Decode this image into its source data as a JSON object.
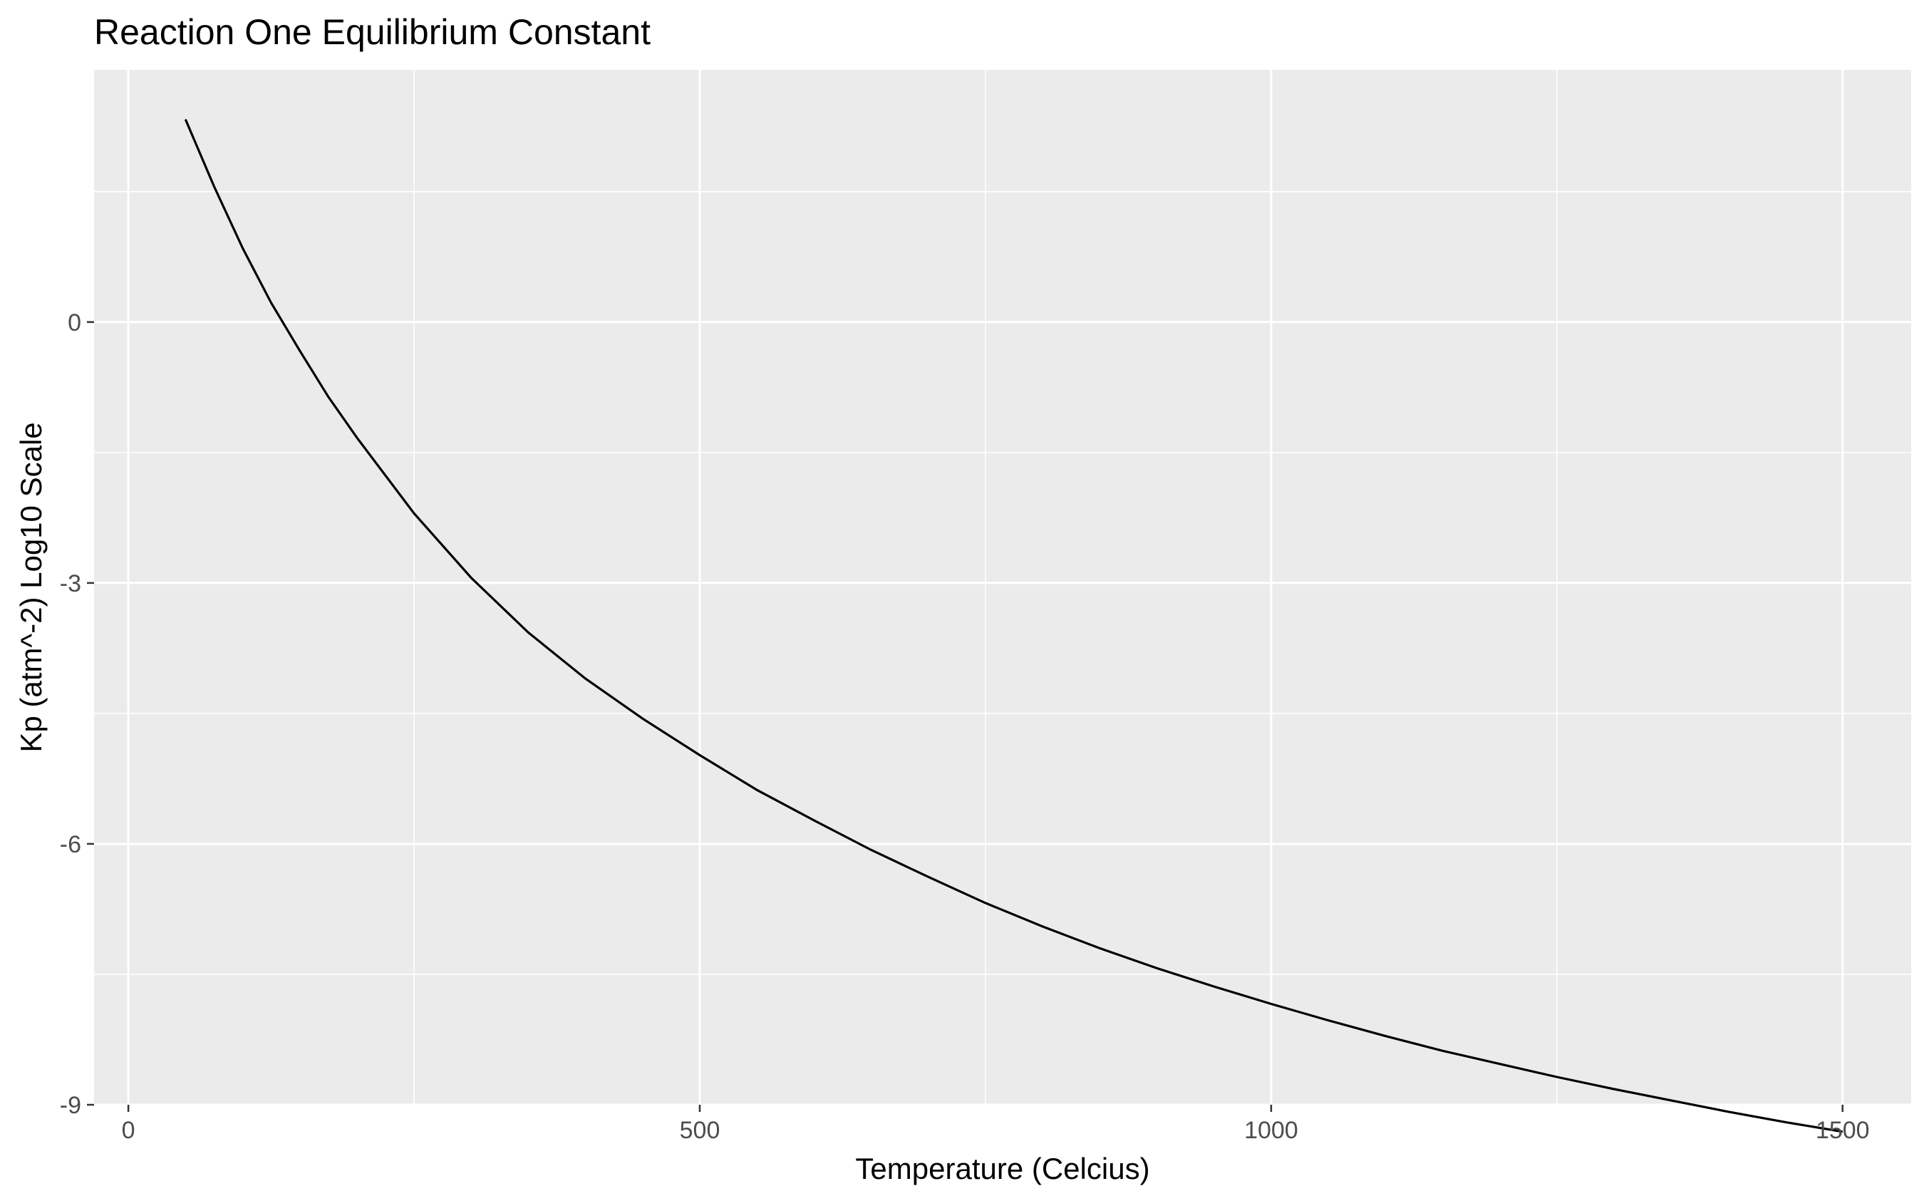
{
  "chart_data": {
    "type": "line",
    "title": "Reaction One Equilibrium Constant",
    "xlabel": "Temperature (Celcius)",
    "ylabel": "Kp (atm^-2) Log10 Scale",
    "xlim": [
      -30,
      1560
    ],
    "ylim": [
      -9,
      2.9
    ],
    "x_ticks": [
      0,
      500,
      1000,
      1500
    ],
    "x_tick_labels": [
      "0",
      "500",
      "1000",
      "1500"
    ],
    "x_minor_ticks": [
      250,
      750,
      1250
    ],
    "y_ticks": [
      -9,
      -6,
      -3,
      0
    ],
    "y_tick_labels": [
      "-9",
      "-6",
      "-3",
      "0"
    ],
    "y_minor_ticks": [
      -7.5,
      -4.5,
      -1.5,
      1.5
    ],
    "grid": true,
    "legend": "none",
    "colors": {
      "panel": "#EBEBEB",
      "grid": "#FFFFFF",
      "line": "#000000",
      "tick_label": "#4D4D4D",
      "text": "#000000"
    },
    "series": [
      {
        "x": [
          50,
          75,
          100,
          125,
          150,
          175,
          200,
          250,
          300,
          350,
          400,
          450,
          500,
          550,
          600,
          650,
          700,
          750,
          800,
          850,
          900,
          950,
          1000,
          1050,
          1100,
          1150,
          1200,
          1250,
          1300,
          1350,
          1400,
          1450,
          1500
        ],
        "y": [
          2.33,
          1.56,
          0.85,
          0.22,
          -0.33,
          -0.86,
          -1.33,
          -2.2,
          -2.94,
          -3.57,
          -4.1,
          -4.56,
          -4.98,
          -5.38,
          -5.73,
          -6.07,
          -6.38,
          -6.68,
          -6.95,
          -7.2,
          -7.43,
          -7.64,
          -7.84,
          -8.03,
          -8.21,
          -8.38,
          -8.53,
          -8.68,
          -8.82,
          -8.95,
          -9.08,
          -9.2,
          -9.31
        ]
      }
    ]
  }
}
